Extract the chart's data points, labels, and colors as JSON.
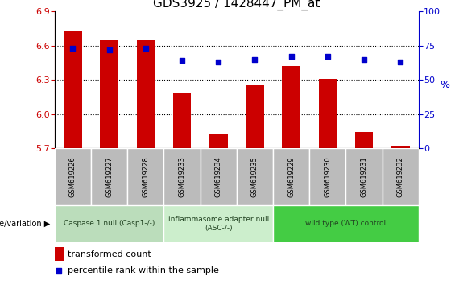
{
  "title": "GDS3925 / 1428447_PM_at",
  "samples": [
    "GSM619226",
    "GSM619227",
    "GSM619228",
    "GSM619233",
    "GSM619234",
    "GSM619235",
    "GSM619229",
    "GSM619230",
    "GSM619231",
    "GSM619232"
  ],
  "bar_values": [
    6.73,
    6.65,
    6.65,
    6.18,
    5.83,
    6.26,
    6.42,
    6.31,
    5.84,
    5.72
  ],
  "dot_values": [
    73,
    72,
    73,
    64,
    63,
    65,
    67,
    67,
    65,
    63
  ],
  "ylim_left": [
    5.7,
    6.9
  ],
  "ylim_right": [
    0,
    100
  ],
  "yticks_left": [
    5.7,
    6.0,
    6.3,
    6.6,
    6.9
  ],
  "yticks_right": [
    0,
    25,
    50,
    75,
    100
  ],
  "bar_color": "#cc0000",
  "dot_color": "#0000cc",
  "bar_bottom": 5.7,
  "groups": [
    {
      "label": "Caspase 1 null (Casp1-/-)",
      "start": 0,
      "end": 3,
      "color": "#bbddbb"
    },
    {
      "label": "inflammasome adapter null\n(ASC-/-)",
      "start": 3,
      "end": 6,
      "color": "#cceecc"
    },
    {
      "label": "wild type (WT) control",
      "start": 6,
      "end": 10,
      "color": "#44cc44"
    }
  ],
  "legend_bar_label": "transformed count",
  "legend_dot_label": "percentile rank within the sample",
  "genotype_label": "genotype/variation",
  "tick_bg_color": "#bbbbbb",
  "tick_border_color": "#ffffff",
  "plot_bg": "#ffffff",
  "right_ylabel_color": "#0000cc",
  "left_ylabel_color": "#cc0000",
  "grid_linestyle": "dotted",
  "grid_color": "#000000",
  "title_fontsize": 11,
  "bar_width": 0.5
}
